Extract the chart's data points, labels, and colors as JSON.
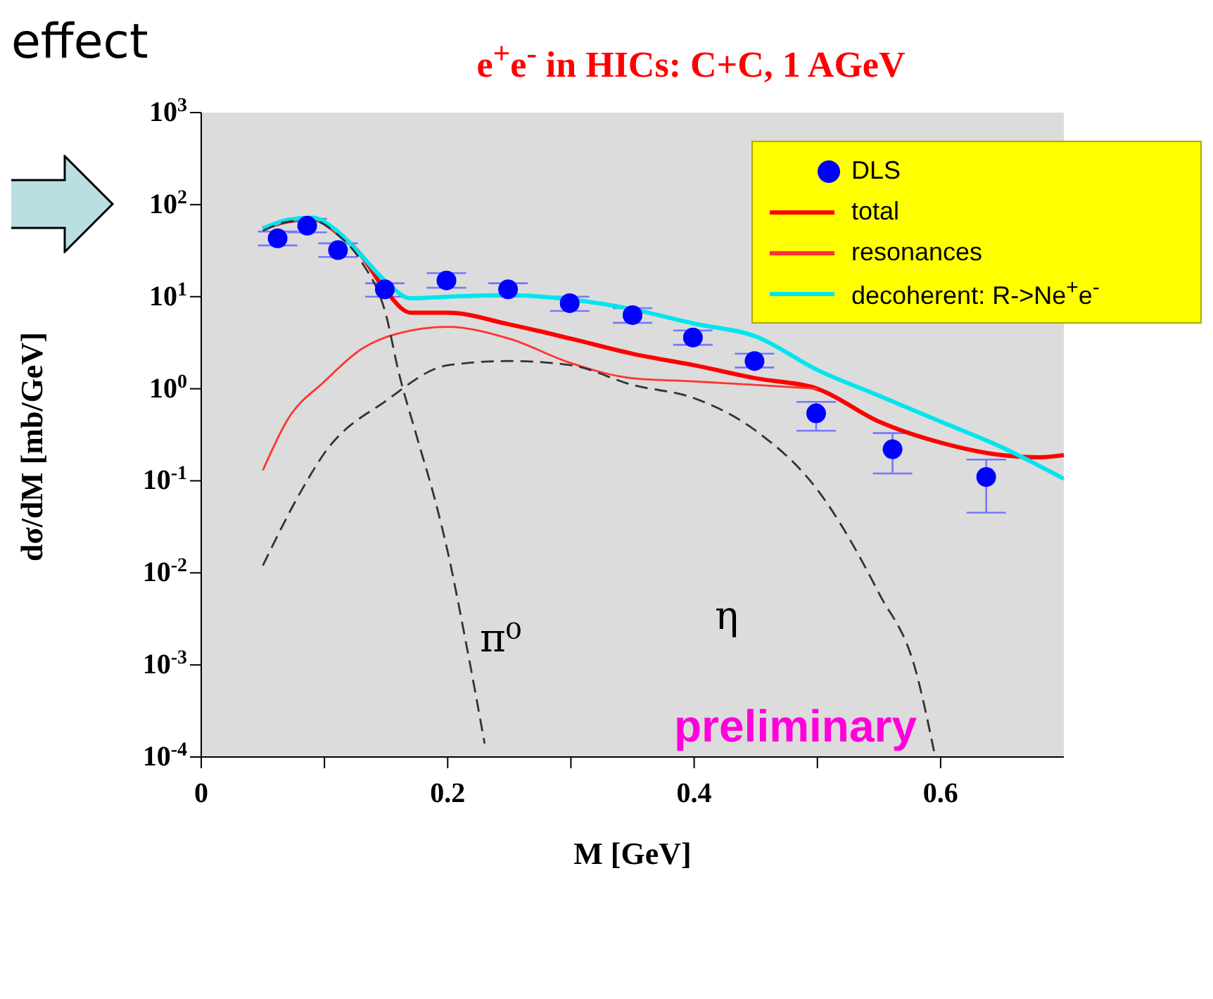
{
  "chart_data": {
    "type": "line",
    "title": "e$^{+}$e$^{-}$ in HICs: C+C, 1 AGeV",
    "xlabel": "M [GeV]",
    "ylabel": "dσ/dM [mb/GeV]",
    "xlim": [
      0,
      0.7
    ],
    "xticks": [
      0,
      {
        "value": 0.1,
        "label": null
      },
      0.2,
      {
        "value": 0.3,
        "label": null
      },
      0.4,
      {
        "value": 0.5,
        "label": null
      },
      0.6
    ],
    "ylim": [
      0.0001,
      1000
    ],
    "yticks": [
      {
        "value": 0.0001,
        "label": "10$^{-4}$"
      },
      {
        "value": 0.001,
        "label": "10$^{-3}$"
      },
      {
        "value": 0.01,
        "label": "10$^{-2}$"
      },
      {
        "value": 0.1,
        "label": "10$^{-1}$"
      },
      {
        "value": 1,
        "label": "10$^{0}$"
      },
      {
        "value": 10,
        "label": "10$^{1}$"
      },
      {
        "value": 100,
        "label": "10$^{2}$"
      },
      {
        "value": 1000,
        "label": "10$^{3}$"
      }
    ],
    "log": "y",
    "legend": "top right",
    "annotations": [
      "effect",
      "preliminary",
      "π⁰",
      "η"
    ],
    "series": [
      {
        "name": "DLS",
        "type": "scatter",
        "marker": "circle",
        "color": "#0000ff",
        "x": [
          0.062,
          0.086,
          0.111,
          0.149,
          0.199,
          0.249,
          0.299,
          0.35,
          0.399,
          0.449,
          0.499,
          0.561,
          0.637
        ],
        "values": [
          43,
          59,
          32,
          12,
          15,
          12,
          8.5,
          6.3,
          3.6,
          2.0,
          0.54,
          0.22,
          0.11
        ],
        "errors": [
          [
            36,
            51
          ],
          [
            50,
            70
          ],
          [
            27,
            38
          ],
          [
            10,
            14
          ],
          [
            12.5,
            18
          ],
          [
            10,
            14
          ],
          [
            7,
            10
          ],
          [
            5.2,
            7.5
          ],
          [
            3,
            4.3
          ],
          [
            1.7,
            2.4
          ],
          [
            0.35,
            0.72
          ],
          [
            0.12,
            0.33
          ],
          [
            0.045,
            0.17
          ]
        ]
      },
      {
        "name": "total",
        "color": "#ff0000",
        "line_style": "solid",
        "x": [
          0.05,
          0.07,
          0.09,
          0.11,
          0.13,
          0.15,
          0.17,
          0.2,
          0.25,
          0.3,
          0.35,
          0.4,
          0.45,
          0.5,
          0.55,
          0.6,
          0.65,
          0.68,
          0.7
        ],
        "values": [
          55,
          66,
          70,
          50,
          28,
          11.5,
          6.7,
          6.7,
          5.0,
          3.5,
          2.4,
          1.8,
          1.3,
          1.0,
          0.44,
          0.26,
          0.19,
          0.18,
          0.19
        ]
      },
      {
        "name": "resonances",
        "color": "#ff3333",
        "line_style": "solid",
        "x": [
          0.05,
          0.07,
          0.1,
          0.13,
          0.16,
          0.2,
          0.25,
          0.3,
          0.35,
          0.4,
          0.45,
          0.5
        ],
        "values": [
          0.13,
          0.46,
          1.2,
          2.7,
          4.0,
          4.7,
          3.5,
          1.9,
          1.3,
          1.2,
          1.1,
          1.0
        ]
      },
      {
        "name": "decoherent: R->Ne$^{+}$e$^{-}$",
        "color": "#00e5ee",
        "line_style": "solid",
        "x": [
          0.05,
          0.07,
          0.09,
          0.11,
          0.13,
          0.15,
          0.17,
          0.2,
          0.25,
          0.3,
          0.35,
          0.4,
          0.45,
          0.5,
          0.55,
          0.6,
          0.65,
          0.7
        ],
        "values": [
          55,
          68,
          72,
          52,
          28,
          14.5,
          9.6,
          10,
          10.4,
          9.3,
          7.3,
          5.1,
          3.7,
          1.6,
          0.84,
          0.44,
          0.23,
          0.105
        ]
      },
      {
        "color": "#333333",
        "line_style": "dashed",
        "x": [
          0.05,
          0.07,
          0.09,
          0.11,
          0.13,
          0.15,
          0.16,
          0.175,
          0.19,
          0.2,
          0.215,
          0.23
        ],
        "values": [
          52,
          65,
          68,
          48,
          24,
          6.3,
          1.56,
          0.3,
          0.06,
          0.017,
          0.0017,
          0.00014
        ]
      },
      {
        "color": "#333333",
        "line_style": "dashed",
        "x": [
          0.05,
          0.08,
          0.1,
          0.15,
          0.2,
          0.25,
          0.3,
          0.35,
          0.4,
          0.45,
          0.5,
          0.55,
          0.58,
          0.595
        ],
        "values": [
          0.012,
          0.073,
          0.2,
          0.74,
          1.8,
          2.0,
          1.8,
          1.1,
          0.79,
          0.35,
          0.08,
          0.006,
          0.00085,
          0.00011
        ]
      }
    ]
  }
}
